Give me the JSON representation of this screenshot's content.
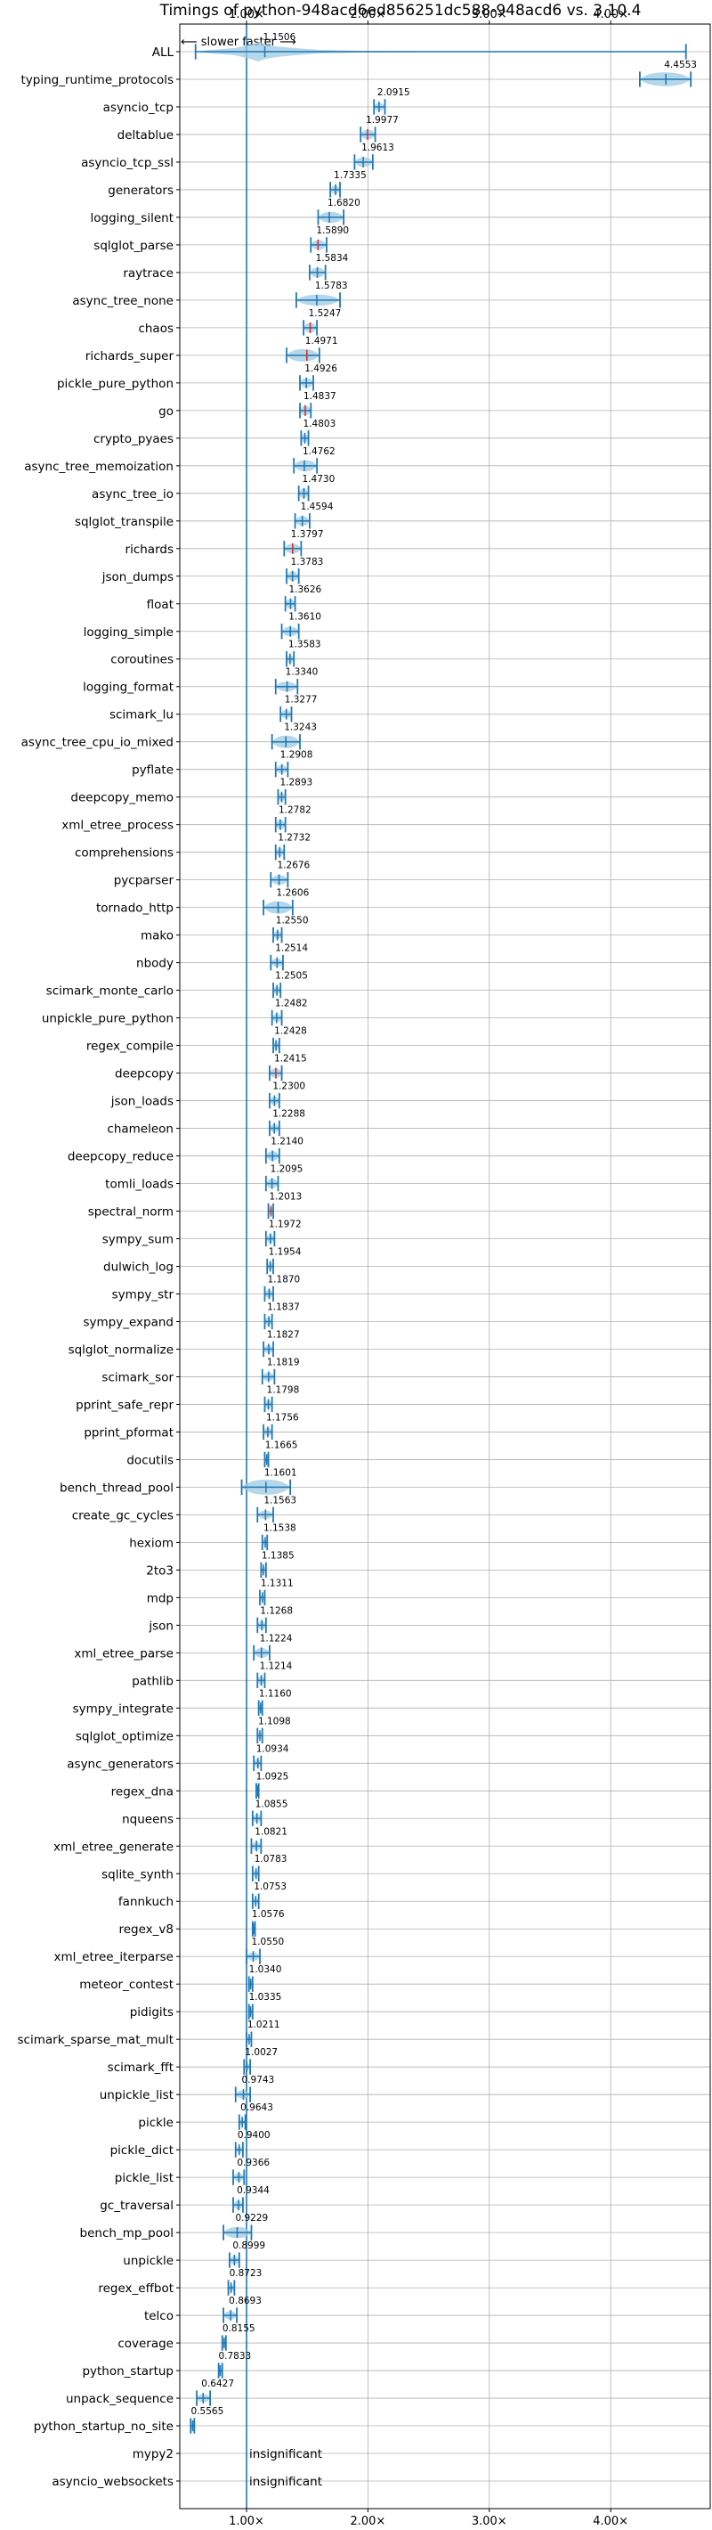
{
  "chart_data": {
    "type": "violin",
    "title": "Timings of python-948acd6ed856251dc588-948acd6 vs. 3.10.4",
    "subtitle_arrow": "⟵ slower   faster ⟶",
    "x_ticks": [
      "1.00×",
      "2.00×",
      "3.00×",
      "4.00×"
    ],
    "x_tick_values": [
      1,
      2,
      3,
      4
    ],
    "xlim": [
      0.45,
      4.82
    ],
    "reference_line": 1.0,
    "grid": true,
    "colors": {
      "violin": "#9ecae1",
      "line": "#1f77b4",
      "median": "#d62728"
    },
    "insignificant_label": "insignificant",
    "benchmarks": [
      {
        "name": "ALL",
        "value": 1.1506,
        "label": "1.1506",
        "min": 0.58,
        "max": 4.62,
        "spread": 0.75,
        "kind": "all"
      },
      {
        "name": "typing_runtime_protocols",
        "value": 4.4553,
        "label": "4.4553",
        "min": 4.24,
        "max": 4.66,
        "spread": 0.5
      },
      {
        "name": "asyncio_tcp",
        "value": 2.0915,
        "label": "2.0915",
        "min": 2.05,
        "max": 2.14,
        "spread": 0.3
      },
      {
        "name": "deltablue",
        "value": 1.9977,
        "label": "1.9977",
        "min": 1.94,
        "max": 2.06,
        "spread": 0.35,
        "median": true
      },
      {
        "name": "asyncio_tcp_ssl",
        "value": 1.9613,
        "label": "1.9613",
        "min": 1.89,
        "max": 2.04,
        "spread": 0.35
      },
      {
        "name": "generators",
        "value": 1.7335,
        "label": "1.7335",
        "min": 1.69,
        "max": 1.77,
        "spread": 0.3
      },
      {
        "name": "logging_silent",
        "value": 1.682,
        "label": "1.6820",
        "min": 1.59,
        "max": 1.8,
        "spread": 0.4
      },
      {
        "name": "sqlglot_parse",
        "value": 1.589,
        "label": "1.5890",
        "min": 1.53,
        "max": 1.66,
        "spread": 0.35,
        "median": true
      },
      {
        "name": "raytrace",
        "value": 1.5834,
        "label": "1.5834",
        "min": 1.52,
        "max": 1.65,
        "spread": 0.35
      },
      {
        "name": "async_tree_none",
        "value": 1.5783,
        "label": "1.5783",
        "min": 1.41,
        "max": 1.77,
        "spread": 0.4
      },
      {
        "name": "chaos",
        "value": 1.5247,
        "label": "1.5247",
        "min": 1.47,
        "max": 1.58,
        "spread": 0.35,
        "median": true
      },
      {
        "name": "richards_super",
        "value": 1.4971,
        "label": "1.4971",
        "min": 1.33,
        "max": 1.6,
        "spread": 0.45,
        "median": true
      },
      {
        "name": "pickle_pure_python",
        "value": 1.4926,
        "label": "1.4926",
        "min": 1.44,
        "max": 1.55,
        "spread": 0.35
      },
      {
        "name": "go",
        "value": 1.4837,
        "label": "1.4837",
        "min": 1.44,
        "max": 1.53,
        "spread": 0.35,
        "median": true
      },
      {
        "name": "crypto_pyaes",
        "value": 1.4803,
        "label": "1.4803",
        "min": 1.45,
        "max": 1.51,
        "spread": 0.3
      },
      {
        "name": "async_tree_memoization",
        "value": 1.4762,
        "label": "1.4762",
        "min": 1.39,
        "max": 1.58,
        "spread": 0.4
      },
      {
        "name": "async_tree_io",
        "value": 1.473,
        "label": "1.4730",
        "min": 1.43,
        "max": 1.51,
        "spread": 0.35
      },
      {
        "name": "sqlglot_transpile",
        "value": 1.4594,
        "label": "1.4594",
        "min": 1.4,
        "max": 1.52,
        "spread": 0.35
      },
      {
        "name": "richards",
        "value": 1.3797,
        "label": "1.3797",
        "min": 1.31,
        "max": 1.45,
        "spread": 0.35,
        "median": true
      },
      {
        "name": "json_dumps",
        "value": 1.3783,
        "label": "1.3783",
        "min": 1.33,
        "max": 1.43,
        "spread": 0.35
      },
      {
        "name": "float",
        "value": 1.3626,
        "label": "1.3626",
        "min": 1.32,
        "max": 1.4,
        "spread": 0.35
      },
      {
        "name": "logging_simple",
        "value": 1.361,
        "label": "1.3610",
        "min": 1.29,
        "max": 1.43,
        "spread": 0.35
      },
      {
        "name": "coroutines",
        "value": 1.3583,
        "label": "1.3583",
        "min": 1.33,
        "max": 1.39,
        "spread": 0.3
      },
      {
        "name": "logging_format",
        "value": 1.334,
        "label": "1.3340",
        "min": 1.24,
        "max": 1.42,
        "spread": 0.35
      },
      {
        "name": "scimark_lu",
        "value": 1.3277,
        "label": "1.3277",
        "min": 1.28,
        "max": 1.37,
        "spread": 0.3
      },
      {
        "name": "async_tree_cpu_io_mixed",
        "value": 1.3243,
        "label": "1.3243",
        "min": 1.21,
        "max": 1.44,
        "spread": 0.45
      },
      {
        "name": "pyflate",
        "value": 1.2908,
        "label": "1.2908",
        "min": 1.24,
        "max": 1.34,
        "spread": 0.3
      },
      {
        "name": "deepcopy_memo",
        "value": 1.2893,
        "label": "1.2893",
        "min": 1.26,
        "max": 1.32,
        "spread": 0.3
      },
      {
        "name": "xml_etree_process",
        "value": 1.2782,
        "label": "1.2782",
        "min": 1.24,
        "max": 1.32,
        "spread": 0.35
      },
      {
        "name": "comprehensions",
        "value": 1.2732,
        "label": "1.2732",
        "min": 1.24,
        "max": 1.31,
        "spread": 0.3
      },
      {
        "name": "pycparser",
        "value": 1.2676,
        "label": "1.2676",
        "min": 1.2,
        "max": 1.34,
        "spread": 0.35
      },
      {
        "name": "tornado_http",
        "value": 1.2606,
        "label": "1.2606",
        "min": 1.14,
        "max": 1.38,
        "spread": 0.45
      },
      {
        "name": "mako",
        "value": 1.255,
        "label": "1.2550",
        "min": 1.22,
        "max": 1.29,
        "spread": 0.3
      },
      {
        "name": "nbody",
        "value": 1.2514,
        "label": "1.2514",
        "min": 1.2,
        "max": 1.3,
        "spread": 0.3
      },
      {
        "name": "scimark_monte_carlo",
        "value": 1.2505,
        "label": "1.2505",
        "min": 1.22,
        "max": 1.28,
        "spread": 0.3
      },
      {
        "name": "unpickle_pure_python",
        "value": 1.2482,
        "label": "1.2482",
        "min": 1.21,
        "max": 1.29,
        "spread": 0.3
      },
      {
        "name": "regex_compile",
        "value": 1.2428,
        "label": "1.2428",
        "min": 1.22,
        "max": 1.27,
        "spread": 0.3
      },
      {
        "name": "deepcopy",
        "value": 1.2415,
        "label": "1.2415",
        "min": 1.19,
        "max": 1.29,
        "spread": 0.35,
        "median": true
      },
      {
        "name": "json_loads",
        "value": 1.23,
        "label": "1.2300",
        "min": 1.19,
        "max": 1.27,
        "spread": 0.3
      },
      {
        "name": "chameleon",
        "value": 1.2288,
        "label": "1.2288",
        "min": 1.19,
        "max": 1.27,
        "spread": 0.3
      },
      {
        "name": "deepcopy_reduce",
        "value": 1.214,
        "label": "1.2140",
        "min": 1.16,
        "max": 1.27,
        "spread": 0.35
      },
      {
        "name": "tomli_loads",
        "value": 1.2095,
        "label": "1.2095",
        "min": 1.16,
        "max": 1.26,
        "spread": 0.35
      },
      {
        "name": "spectral_norm",
        "value": 1.2013,
        "label": "1.2013",
        "min": 1.18,
        "max": 1.22,
        "spread": 0.3,
        "median": true
      },
      {
        "name": "sympy_sum",
        "value": 1.1972,
        "label": "1.1972",
        "min": 1.16,
        "max": 1.23,
        "spread": 0.3
      },
      {
        "name": "dulwich_log",
        "value": 1.1954,
        "label": "1.1954",
        "min": 1.17,
        "max": 1.22,
        "spread": 0.3
      },
      {
        "name": "sympy_str",
        "value": 1.187,
        "label": "1.1870",
        "min": 1.15,
        "max": 1.22,
        "spread": 0.3
      },
      {
        "name": "sympy_expand",
        "value": 1.1837,
        "label": "1.1837",
        "min": 1.15,
        "max": 1.21,
        "spread": 0.3
      },
      {
        "name": "sqlglot_normalize",
        "value": 1.1827,
        "label": "1.1827",
        "min": 1.14,
        "max": 1.22,
        "spread": 0.3
      },
      {
        "name": "scimark_sor",
        "value": 1.1819,
        "label": "1.1819",
        "min": 1.13,
        "max": 1.23,
        "spread": 0.3
      },
      {
        "name": "pprint_safe_repr",
        "value": 1.1798,
        "label": "1.1798",
        "min": 1.15,
        "max": 1.21,
        "spread": 0.3
      },
      {
        "name": "pprint_pformat",
        "value": 1.1756,
        "label": "1.1756",
        "min": 1.14,
        "max": 1.21,
        "spread": 0.3
      },
      {
        "name": "docutils",
        "value": 1.1665,
        "label": "1.1665",
        "min": 1.15,
        "max": 1.18,
        "spread": 0.25
      },
      {
        "name": "bench_thread_pool",
        "value": 1.1601,
        "label": "1.1601",
        "min": 0.96,
        "max": 1.36,
        "spread": 0.55
      },
      {
        "name": "create_gc_cycles",
        "value": 1.1563,
        "label": "1.1563",
        "min": 1.09,
        "max": 1.22,
        "spread": 0.3
      },
      {
        "name": "hexiom",
        "value": 1.1538,
        "label": "1.1538",
        "min": 1.13,
        "max": 1.17,
        "spread": 0.25
      },
      {
        "name": "2to3",
        "value": 1.1385,
        "label": "1.1385",
        "min": 1.12,
        "max": 1.16,
        "spread": 0.25
      },
      {
        "name": "mdp",
        "value": 1.1311,
        "label": "1.1311",
        "min": 1.11,
        "max": 1.15,
        "spread": 0.25
      },
      {
        "name": "json",
        "value": 1.1268,
        "label": "1.1268",
        "min": 1.09,
        "max": 1.16,
        "spread": 0.3
      },
      {
        "name": "xml_etree_parse",
        "value": 1.1224,
        "label": "1.1224",
        "min": 1.06,
        "max": 1.19,
        "spread": 0.35
      },
      {
        "name": "pathlib",
        "value": 1.1214,
        "label": "1.1214",
        "min": 1.09,
        "max": 1.15,
        "spread": 0.3
      },
      {
        "name": "sympy_integrate",
        "value": 1.116,
        "label": "1.1160",
        "min": 1.1,
        "max": 1.13,
        "spread": 0.25
      },
      {
        "name": "sqlglot_optimize",
        "value": 1.1098,
        "label": "1.1098",
        "min": 1.09,
        "max": 1.13,
        "spread": 0.25
      },
      {
        "name": "async_generators",
        "value": 1.0934,
        "label": "1.0934",
        "min": 1.06,
        "max": 1.12,
        "spread": 0.3
      },
      {
        "name": "regex_dna",
        "value": 1.0925,
        "label": "1.0925",
        "min": 1.08,
        "max": 1.1,
        "spread": 0.25
      },
      {
        "name": "nqueens",
        "value": 1.0855,
        "label": "1.0855",
        "min": 1.05,
        "max": 1.12,
        "spread": 0.3
      },
      {
        "name": "xml_etree_generate",
        "value": 1.0821,
        "label": "1.0821",
        "min": 1.04,
        "max": 1.12,
        "spread": 0.3
      },
      {
        "name": "sqlite_synth",
        "value": 1.0783,
        "label": "1.0783",
        "min": 1.05,
        "max": 1.1,
        "spread": 0.25
      },
      {
        "name": "fannkuch",
        "value": 1.0753,
        "label": "1.0753",
        "min": 1.05,
        "max": 1.1,
        "spread": 0.25
      },
      {
        "name": "regex_v8",
        "value": 1.0576,
        "label": "1.0576",
        "min": 1.05,
        "max": 1.07,
        "spread": 0.2
      },
      {
        "name": "xml_etree_iterparse",
        "value": 1.055,
        "label": "1.0550",
        "min": 1.0,
        "max": 1.11,
        "spread": 0.3
      },
      {
        "name": "meteor_contest",
        "value": 1.034,
        "label": "1.0340",
        "min": 1.02,
        "max": 1.05,
        "spread": 0.25
      },
      {
        "name": "pidigits",
        "value": 1.0335,
        "label": "1.0335",
        "min": 1.02,
        "max": 1.05,
        "spread": 0.25
      },
      {
        "name": "scimark_sparse_mat_mult",
        "value": 1.0211,
        "label": "1.0211",
        "min": 1.0,
        "max": 1.04,
        "spread": 0.25
      },
      {
        "name": "scimark_fft",
        "value": 1.0027,
        "label": "1.0027",
        "min": 0.98,
        "max": 1.03,
        "spread": 0.25
      },
      {
        "name": "unpickle_list",
        "value": 0.9743,
        "label": "0.9743",
        "min": 0.91,
        "max": 1.03,
        "spread": 0.3
      },
      {
        "name": "pickle",
        "value": 0.9643,
        "label": "0.9643",
        "min": 0.94,
        "max": 0.99,
        "spread": 0.25
      },
      {
        "name": "pickle_dict",
        "value": 0.94,
        "label": "0.9400",
        "min": 0.91,
        "max": 0.97,
        "spread": 0.25
      },
      {
        "name": "pickle_list",
        "value": 0.9366,
        "label": "0.9366",
        "min": 0.89,
        "max": 0.98,
        "spread": 0.3
      },
      {
        "name": "gc_traversal",
        "value": 0.9344,
        "label": "0.9344",
        "min": 0.89,
        "max": 0.97,
        "spread": 0.3
      },
      {
        "name": "bench_mp_pool",
        "value": 0.9229,
        "label": "0.9229",
        "min": 0.81,
        "max": 1.04,
        "spread": 0.4
      },
      {
        "name": "unpickle",
        "value": 0.8999,
        "label": "0.8999",
        "min": 0.86,
        "max": 0.94,
        "spread": 0.3
      },
      {
        "name": "regex_effbot",
        "value": 0.8723,
        "label": "0.8723",
        "min": 0.85,
        "max": 0.9,
        "spread": 0.25
      },
      {
        "name": "telco",
        "value": 0.8693,
        "label": "0.8693",
        "min": 0.81,
        "max": 0.92,
        "spread": 0.3
      },
      {
        "name": "coverage",
        "value": 0.8155,
        "label": "0.8155",
        "min": 0.8,
        "max": 0.83,
        "spread": 0.25
      },
      {
        "name": "python_startup",
        "value": 0.7833,
        "label": "0.7833",
        "min": 0.77,
        "max": 0.8,
        "spread": 0.25
      },
      {
        "name": "unpack_sequence",
        "value": 0.6427,
        "label": "0.6427",
        "min": 0.59,
        "max": 0.7,
        "spread": 0.3
      },
      {
        "name": "python_startup_no_site",
        "value": 0.5565,
        "label": "0.5565",
        "min": 0.54,
        "max": 0.57,
        "spread": 0.25
      },
      {
        "name": "mypy2",
        "value": null,
        "label": "",
        "kind": "insignificant"
      },
      {
        "name": "asyncio_websockets",
        "value": null,
        "label": "",
        "kind": "insignificant"
      }
    ]
  }
}
